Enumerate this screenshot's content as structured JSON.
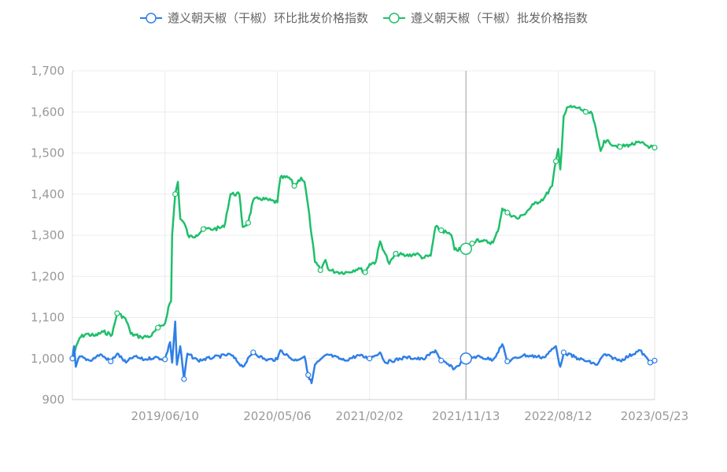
{
  "legend": [
    {
      "label": "遵义朝天椒（干椒）环比批发价格指数",
      "color": "#2f7fe6"
    },
    {
      "label": "遵义朝天椒（干椒）批发价格指数",
      "color": "#1fbf6b"
    }
  ],
  "chart_data": {
    "type": "line",
    "x_ticks": [
      "2019/06/10",
      "2020/05/06",
      "2021/02/02",
      "2021/11/13",
      "2022/08/12",
      "2023/05/23"
    ],
    "y_ticks": [
      "900",
      "1,000",
      "1,100",
      "1,200",
      "1,300",
      "1,400",
      "1,500",
      "1,600",
      "1,700"
    ],
    "ylim": [
      900,
      1700
    ],
    "grid": true,
    "legend_position": "top",
    "crosshair_x": "2021/11/13",
    "series": [
      {
        "name": "遵义朝天椒（干椒）批发价格指数",
        "color": "#1fbf6b",
        "points": [
          [
            "2018/09/10",
            1000
          ],
          [
            "2018/10/01",
            1050
          ],
          [
            "2018/10/20",
            1060
          ],
          [
            "2018/11/15",
            1055
          ],
          [
            "2018/12/10",
            1065
          ],
          [
            "2019/01/05",
            1058
          ],
          [
            "2019/01/20",
            1110
          ],
          [
            "2019/02/10",
            1100
          ],
          [
            "2019/02/20",
            1085
          ],
          [
            "2019/03/01",
            1060
          ],
          [
            "2019/04/01",
            1052
          ],
          [
            "2019/05/01",
            1055
          ],
          [
            "2019/05/20",
            1075
          ],
          [
            "2019/06/01",
            1080
          ],
          [
            "2019/06/10",
            1085
          ],
          [
            "2019/06/20",
            1125
          ],
          [
            "2019/06/28",
            1140
          ],
          [
            "2019/07/01",
            1300
          ],
          [
            "2019/07/10",
            1400
          ],
          [
            "2019/07/18",
            1430
          ],
          [
            "2019/07/25",
            1340
          ],
          [
            "2019/08/05",
            1330
          ],
          [
            "2019/08/20",
            1295
          ],
          [
            "2019/09/10",
            1300
          ],
          [
            "2019/10/01",
            1315
          ],
          [
            "2019/11/01",
            1315
          ],
          [
            "2019/12/01",
            1320
          ],
          [
            "2019/12/20",
            1400
          ],
          [
            "2020/01/15",
            1400
          ],
          [
            "2020/01/25",
            1320
          ],
          [
            "2020/02/10",
            1330
          ],
          [
            "2020/02/25",
            1385
          ],
          [
            "2020/03/15",
            1390
          ],
          [
            "2020/05/06",
            1380
          ],
          [
            "2020/05/15",
            1440
          ],
          [
            "2020/06/10",
            1440
          ],
          [
            "2020/06/25",
            1420
          ],
          [
            "2020/07/15",
            1440
          ],
          [
            "2020/07/25",
            1430
          ],
          [
            "2020/08/05",
            1370
          ],
          [
            "2020/08/15",
            1300
          ],
          [
            "2020/08/25",
            1235
          ],
          [
            "2020/09/10",
            1215
          ],
          [
            "2020/09/25",
            1240
          ],
          [
            "2020/10/05",
            1215
          ],
          [
            "2020/11/01",
            1210
          ],
          [
            "2020/12/01",
            1210
          ],
          [
            "2021/01/01",
            1220
          ],
          [
            "2021/01/20",
            1210
          ],
          [
            "2021/02/02",
            1230
          ],
          [
            "2021/02/20",
            1235
          ],
          [
            "2021/03/05",
            1285
          ],
          [
            "2021/03/20",
            1255
          ],
          [
            "2021/04/01",
            1230
          ],
          [
            "2021/04/20",
            1255
          ],
          [
            "2021/05/20",
            1250
          ],
          [
            "2021/06/20",
            1255
          ],
          [
            "2021/07/10",
            1245
          ],
          [
            "2021/08/01",
            1250
          ],
          [
            "2021/08/15",
            1320
          ],
          [
            "2021/09/01",
            1312
          ],
          [
            "2021/09/20",
            1305
          ],
          [
            "2021/10/01",
            1300
          ],
          [
            "2021/10/10",
            1265
          ],
          [
            "2021/11/01",
            1265
          ],
          [
            "2021/11/13",
            1267
          ],
          [
            "2021/12/01",
            1280
          ],
          [
            "2021/12/15",
            1290
          ],
          [
            "2022/01/01",
            1285
          ],
          [
            "2022/02/01",
            1282
          ],
          [
            "2022/02/15",
            1310
          ],
          [
            "2022/02/28",
            1365
          ],
          [
            "2022/03/15",
            1355
          ],
          [
            "2022/04/15",
            1340
          ],
          [
            "2022/05/01",
            1350
          ],
          [
            "2022/06/01",
            1375
          ],
          [
            "2022/07/01",
            1390
          ],
          [
            "2022/07/25",
            1420
          ],
          [
            "2022/08/05",
            1480
          ],
          [
            "2022/08/12",
            1510
          ],
          [
            "2022/08/18",
            1460
          ],
          [
            "2022/08/28",
            1590
          ],
          [
            "2022/09/10",
            1612
          ],
          [
            "2022/10/10",
            1610
          ],
          [
            "2022/11/01",
            1600
          ],
          [
            "2022/11/20",
            1595
          ],
          [
            "2022/12/05",
            1540
          ],
          [
            "2022/12/15",
            1505
          ],
          [
            "2022/12/25",
            1530
          ],
          [
            "2023/01/10",
            1525
          ],
          [
            "2023/02/10",
            1515
          ],
          [
            "2023/03/10",
            1520
          ],
          [
            "2023/04/10",
            1525
          ],
          [
            "2023/05/10",
            1515
          ],
          [
            "2023/05/23",
            1513
          ]
        ]
      },
      {
        "name": "遵义朝天椒（干椒）环比批发价格指数",
        "color": "#2f7fe6",
        "points": [
          [
            "2018/09/10",
            1000
          ],
          [
            "2018/09/15",
            1030
          ],
          [
            "2018/09/20",
            980
          ],
          [
            "2018/10/01",
            1005
          ],
          [
            "2018/11/01",
            995
          ],
          [
            "2018/12/01",
            1010
          ],
          [
            "2019/01/01",
            993
          ],
          [
            "2019/01/20",
            1012
          ],
          [
            "2019/02/15",
            990
          ],
          [
            "2019/03/10",
            1005
          ],
          [
            "2019/04/10",
            997
          ],
          [
            "2019/05/10",
            1003
          ],
          [
            "2019/06/10",
            998
          ],
          [
            "2019/06/25",
            1040
          ],
          [
            "2019/07/01",
            990
          ],
          [
            "2019/07/10",
            1090
          ],
          [
            "2019/07/15",
            985
          ],
          [
            "2019/07/25",
            1030
          ],
          [
            "2019/08/05",
            950
          ],
          [
            "2019/08/15",
            1012
          ],
          [
            "2019/09/15",
            995
          ],
          [
            "2019/11/01",
            1003
          ],
          [
            "2019/12/20",
            1010
          ],
          [
            "2020/01/25",
            980
          ],
          [
            "2020/02/25",
            1015
          ],
          [
            "2020/04/01",
            997
          ],
          [
            "2020/05/06",
            998
          ],
          [
            "2020/05/15",
            1020
          ],
          [
            "2020/06/25",
            995
          ],
          [
            "2020/07/25",
            1005
          ],
          [
            "2020/08/05",
            960
          ],
          [
            "2020/08/15",
            940
          ],
          [
            "2020/08/25",
            985
          ],
          [
            "2020/10/01",
            1010
          ],
          [
            "2020/11/20",
            995
          ],
          [
            "2021/01/01",
            1008
          ],
          [
            "2021/02/02",
            1000
          ],
          [
            "2021/03/05",
            1015
          ],
          [
            "2021/03/20",
            990
          ],
          [
            "2021/05/20",
            1003
          ],
          [
            "2021/07/10",
            998
          ],
          [
            "2021/08/15",
            1020
          ],
          [
            "2021/09/01",
            995
          ],
          [
            "2021/10/10",
            975
          ],
          [
            "2021/11/13",
            1000
          ],
          [
            "2021/12/15",
            1005
          ],
          [
            "2022/02/01",
            997
          ],
          [
            "2022/02/28",
            1035
          ],
          [
            "2022/03/15",
            993
          ],
          [
            "2022/05/01",
            1008
          ],
          [
            "2022/07/01",
            1003
          ],
          [
            "2022/08/05",
            1030
          ],
          [
            "2022/08/12",
            1000
          ],
          [
            "2022/08/18",
            980
          ],
          [
            "2022/08/28",
            1015
          ],
          [
            "2022/10/10",
            1000
          ],
          [
            "2022/12/05",
            985
          ],
          [
            "2022/12/25",
            1010
          ],
          [
            "2023/02/10",
            995
          ],
          [
            "2023/04/10",
            1020
          ],
          [
            "2023/05/10",
            990
          ],
          [
            "2023/05/23",
            995
          ]
        ]
      }
    ]
  }
}
